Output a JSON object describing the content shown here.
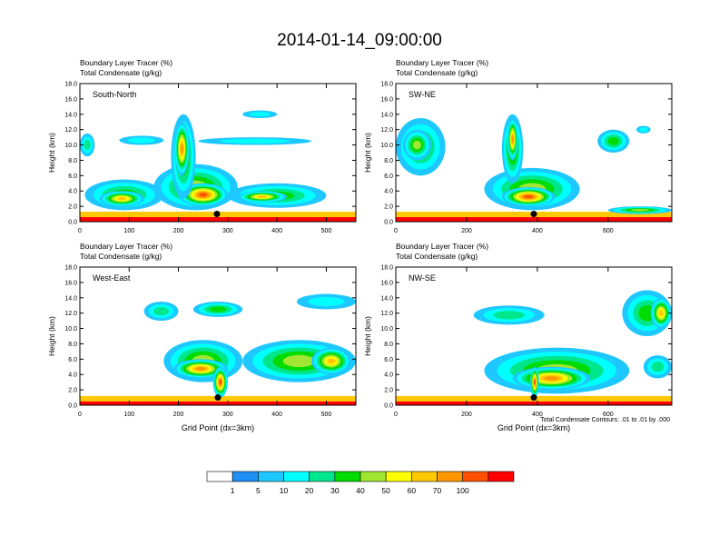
{
  "page_title": "2014-01-14_09:00:00",
  "footnote": "Total Condensate Contours: .01 to .01 by .000",
  "colorbar": {
    "labels": [
      "1",
      "5",
      "10",
      "20",
      "30",
      "40",
      "50",
      "60",
      "70",
      "100"
    ],
    "colors": [
      "#ffffff",
      "#1e8ff5",
      "#1ec8ff",
      "#00ffff",
      "#00e68c",
      "#00dc00",
      "#a0e632",
      "#ffff00",
      "#ffc800",
      "#ff9600",
      "#ff5000",
      "#ff0000"
    ]
  },
  "panel_subtitles": {
    "line1": "Boundary Layer Tracer    (%)",
    "line2": "Total Condensate    (g/kg)"
  },
  "chart_data": [
    {
      "type": "heatmap",
      "panel_label": "South-North",
      "ylabel": "Height (km)",
      "xlabel": "",
      "xlim": [
        0,
        560
      ],
      "ylim": [
        0,
        18
      ],
      "xticks": [
        "0",
        "100",
        "200",
        "300",
        "400",
        "500"
      ],
      "yticks": [
        "0.0",
        "2.0",
        "4.0",
        "6.0",
        "8.0",
        "10.0",
        "12.0",
        "14.0",
        "16.0",
        "18.0"
      ],
      "marker": {
        "x": 278,
        "y": 1.0
      },
      "features": [
        {
          "x": [
            0,
            560
          ],
          "y": [
            0,
            0.6
          ],
          "level": 100
        },
        {
          "x": [
            0,
            560
          ],
          "y": [
            0.6,
            1.3
          ],
          "level": 50
        },
        {
          "x": [
            10,
            170
          ],
          "y": [
            1.5,
            5.5
          ],
          "level": 20
        },
        {
          "x": [
            40,
            130
          ],
          "y": [
            2.0,
            4.0
          ],
          "level": 50
        },
        {
          "x": [
            150,
            320
          ],
          "y": [
            1.5,
            7.5
          ],
          "level": 30
        },
        {
          "x": [
            200,
            300
          ],
          "y": [
            2.0,
            5.0
          ],
          "level": 70
        },
        {
          "x": [
            300,
            500
          ],
          "y": [
            1.8,
            5.0
          ],
          "level": 20
        },
        {
          "x": [
            320,
            420
          ],
          "y": [
            2.5,
            4.0
          ],
          "level": 50
        },
        {
          "x": [
            185,
            235
          ],
          "y": [
            3.0,
            14.0
          ],
          "level": 30
        },
        {
          "x": [
            192,
            222
          ],
          "y": [
            6.0,
            13.0
          ],
          "level": 60
        },
        {
          "x": [
            0,
            30
          ],
          "y": [
            8.5,
            11.5
          ],
          "level": 10
        },
        {
          "x": [
            80,
            170
          ],
          "y": [
            10.0,
            11.2
          ],
          "level": 5
        },
        {
          "x": [
            240,
            470
          ],
          "y": [
            10.0,
            11.0
          ],
          "level": 5
        },
        {
          "x": [
            330,
            400
          ],
          "y": [
            13.5,
            14.5
          ],
          "level": 5
        }
      ]
    },
    {
      "type": "heatmap",
      "panel_label": "SW-NE",
      "ylabel": "Height (km)",
      "xlabel": "",
      "xlim": [
        0,
        780
      ],
      "ylim": [
        0,
        18
      ],
      "xticks": [
        "0",
        "200",
        "400",
        "600"
      ],
      "yticks": [
        "0.0",
        "2.0",
        "4.0",
        "6.0",
        "8.0",
        "10.0",
        "12.0",
        "14.0",
        "16.0",
        "18.0"
      ],
      "marker": {
        "x": 390,
        "y": 1.0
      },
      "features": [
        {
          "x": [
            0,
            780
          ],
          "y": [
            0,
            0.6
          ],
          "level": 100
        },
        {
          "x": [
            0,
            780
          ],
          "y": [
            0.6,
            1.3
          ],
          "level": 50
        },
        {
          "x": [
            0,
            140
          ],
          "y": [
            6.0,
            13.5
          ],
          "level": 20
        },
        {
          "x": [
            20,
            100
          ],
          "y": [
            8.0,
            12.0
          ],
          "level": 30
        },
        {
          "x": [
            250,
            520
          ],
          "y": [
            1.5,
            7.0
          ],
          "level": 30
        },
        {
          "x": [
            300,
            450
          ],
          "y": [
            2.0,
            4.5
          ],
          "level": 70
        },
        {
          "x": [
            300,
            360
          ],
          "y": [
            5.0,
            14.0
          ],
          "level": 30
        },
        {
          "x": [
            315,
            345
          ],
          "y": [
            8.0,
            13.5
          ],
          "level": 60
        },
        {
          "x": [
            570,
            660
          ],
          "y": [
            9.0,
            12.0
          ],
          "level": 20
        },
        {
          "x": [
            680,
            720
          ],
          "y": [
            11.5,
            12.5
          ],
          "level": 5
        },
        {
          "x": [
            600,
            780
          ],
          "y": [
            1.0,
            2.0
          ],
          "level": 30
        }
      ]
    },
    {
      "type": "heatmap",
      "panel_label": "West-East",
      "ylabel": "Height (km)",
      "xlabel": "Grid Point (dx=3km)",
      "xlim": [
        0,
        560
      ],
      "ylim": [
        0,
        18
      ],
      "xticks": [
        "0",
        "100",
        "200",
        "300",
        "400",
        "500"
      ],
      "yticks": [
        "0.0",
        "2.0",
        "4.0",
        "6.0",
        "8.0",
        "10.0",
        "12.0",
        "14.0",
        "16.0",
        "18.0"
      ],
      "marker": {
        "x": 280,
        "y": 1.0
      },
      "features": [
        {
          "x": [
            0,
            560
          ],
          "y": [
            0,
            0.5
          ],
          "level": 100
        },
        {
          "x": [
            0,
            560
          ],
          "y": [
            0.5,
            1.2
          ],
          "level": 50
        },
        {
          "x": [
            170,
            330
          ],
          "y": [
            3.0,
            8.5
          ],
          "level": 30
        },
        {
          "x": [
            190,
            300
          ],
          "y": [
            3.5,
            6.0
          ],
          "level": 60
        },
        {
          "x": [
            270,
            300
          ],
          "y": [
            1.0,
            5.0
          ],
          "level": 70
        },
        {
          "x": [
            330,
            560
          ],
          "y": [
            3.0,
            8.5
          ],
          "level": 30
        },
        {
          "x": [
            470,
            550
          ],
          "y": [
            4.0,
            7.5
          ],
          "level": 50
        },
        {
          "x": [
            130,
            200
          ],
          "y": [
            11.0,
            13.5
          ],
          "level": 10
        },
        {
          "x": [
            230,
            330
          ],
          "y": [
            11.5,
            13.5
          ],
          "level": 20
        },
        {
          "x": [
            440,
            560
          ],
          "y": [
            12.5,
            14.5
          ],
          "level": 5
        }
      ]
    },
    {
      "type": "heatmap",
      "panel_label": "NW-SE",
      "ylabel": "Height (km)",
      "xlabel": "Grid Point (dx=3km)",
      "xlim": [
        0,
        780
      ],
      "ylim": [
        0,
        18
      ],
      "xticks": [
        "0",
        "200",
        "400",
        "600"
      ],
      "yticks": [
        "0.0",
        "2.0",
        "4.0",
        "6.0",
        "8.0",
        "10.0",
        "12.0",
        "14.0",
        "16.0",
        "18.0"
      ],
      "marker": {
        "x": 390,
        "y": 1.0
      },
      "features": [
        {
          "x": [
            0,
            780
          ],
          "y": [
            0,
            0.5
          ],
          "level": 100
        },
        {
          "x": [
            0,
            780
          ],
          "y": [
            0.5,
            1.2
          ],
          "level": 50
        },
        {
          "x": [
            250,
            660
          ],
          "y": [
            1.5,
            7.5
          ],
          "level": 30
        },
        {
          "x": [
            330,
            550
          ],
          "y": [
            2.0,
            5.0
          ],
          "level": 60
        },
        {
          "x": [
            380,
            405
          ],
          "y": [
            1.0,
            5.0
          ],
          "level": 70
        },
        {
          "x": [
            220,
            420
          ],
          "y": [
            10.5,
            13.0
          ],
          "level": 10
        },
        {
          "x": [
            640,
            780
          ],
          "y": [
            9.0,
            15.0
          ],
          "level": 20
        },
        {
          "x": [
            720,
            780
          ],
          "y": [
            10.0,
            14.0
          ],
          "level": 50
        },
        {
          "x": [
            700,
            780
          ],
          "y": [
            3.5,
            6.5
          ],
          "level": 10
        }
      ]
    }
  ]
}
